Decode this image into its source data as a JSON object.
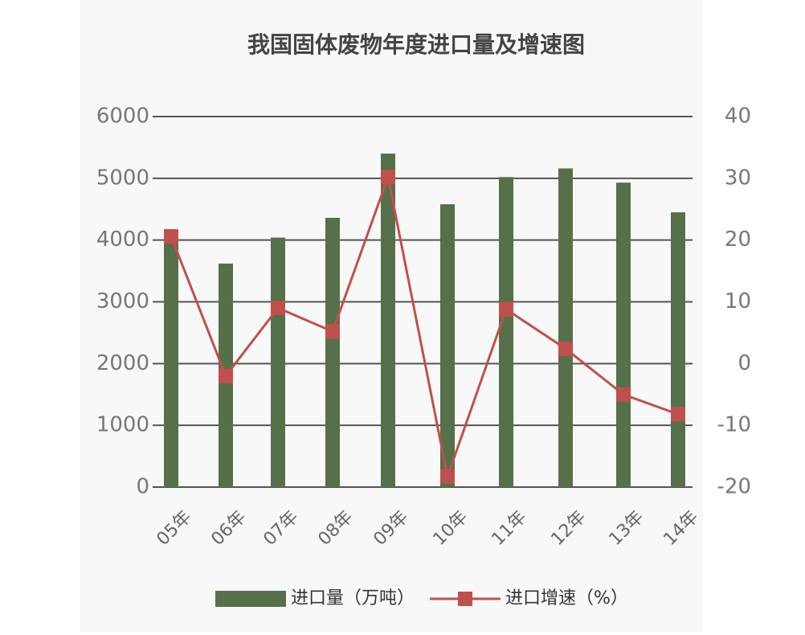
{
  "chart_data": {
    "type": "bar-line",
    "title": "我国固体废物年度进口量及增速图",
    "categories": [
      "05年",
      "06年",
      "07年",
      "08年",
      "09年",
      "10年",
      "11年",
      "12年",
      "13年",
      "14年"
    ],
    "series": [
      {
        "name": "进口量（万吨）",
        "type": "bar",
        "color": "#56704a",
        "values": [
          4050,
          3620,
          4040,
          4360,
          5400,
          4580,
          5020,
          5160,
          4930,
          4450
        ]
      },
      {
        "name": "进口增速（%）",
        "type": "line",
        "axis": "y2",
        "color": "#c0504d",
        "values": [
          20.6,
          -2.0,
          9.0,
          5.2,
          30.2,
          -18.3,
          8.8,
          2.4,
          -5.0,
          -8.2
        ]
      }
    ],
    "ylim": [
      0,
      6000
    ],
    "yticks": [
      0,
      1000,
      2000,
      3000,
      4000,
      5000,
      6000
    ],
    "y2lim": [
      -20,
      40
    ],
    "y2ticks": [
      -20,
      -10,
      0,
      10,
      20,
      30,
      40
    ],
    "grid": true,
    "legend": "bottom"
  }
}
